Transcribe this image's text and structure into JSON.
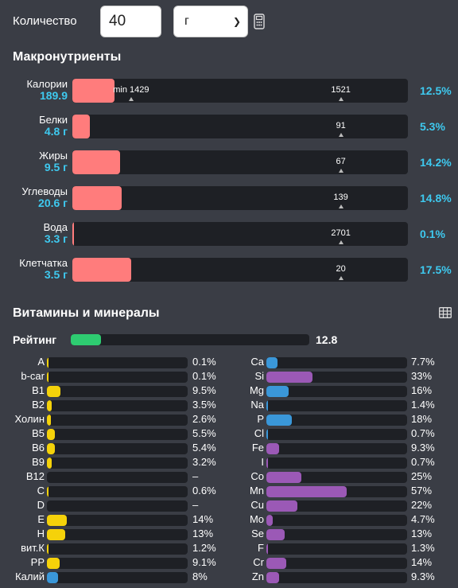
{
  "quantity": {
    "label": "Количество",
    "value": "40",
    "unit": "г"
  },
  "macros": {
    "title": "Макронутриенты",
    "fill_color": "#ff7c7c",
    "items": [
      {
        "name": "Калории",
        "value": "189.9",
        "fraction": 0.125,
        "markers": [
          {
            "label": "min 1429",
            "pos": 0.175
          },
          {
            "label": "1521",
            "pos": 0.8
          }
        ],
        "pct": "12.5%"
      },
      {
        "name": "Белки",
        "value": "4.8 г",
        "fraction": 0.053,
        "markers": [
          {
            "label": "91",
            "pos": 0.8
          }
        ],
        "pct": "5.3%"
      },
      {
        "name": "Жиры",
        "value": "9.5 г",
        "fraction": 0.142,
        "markers": [
          {
            "label": "67",
            "pos": 0.8
          }
        ],
        "pct": "14.2%"
      },
      {
        "name": "Углеводы",
        "value": "20.6 г",
        "fraction": 0.148,
        "markers": [
          {
            "label": "139",
            "pos": 0.8
          }
        ],
        "pct": "14.8%"
      },
      {
        "name": "Вода",
        "value": "3.3 г",
        "fraction": 0.001,
        "markers": [
          {
            "label": "2701",
            "pos": 0.8
          }
        ],
        "pct": "0.1%"
      },
      {
        "name": "Клетчатка",
        "value": "3.5 г",
        "fraction": 0.175,
        "markers": [
          {
            "label": "20",
            "pos": 0.8
          }
        ],
        "pct": "17.5%"
      }
    ]
  },
  "vitamins": {
    "title": "Витамины и минералы",
    "rating_label": "Рейтинг",
    "rating_value": "12.8",
    "rating_fraction": 0.128,
    "rating_color": "#2ecc71",
    "left": [
      {
        "name": "A",
        "pct": "0.1%",
        "fraction": 0.001,
        "color": "#f5d20a"
      },
      {
        "name": "b-car",
        "pct": "0.1%",
        "fraction": 0.001,
        "color": "#f5d20a"
      },
      {
        "name": "B1",
        "pct": "9.5%",
        "fraction": 0.095,
        "color": "#f5d20a"
      },
      {
        "name": "B2",
        "pct": "3.5%",
        "fraction": 0.035,
        "color": "#f5d20a"
      },
      {
        "name": "Холин",
        "pct": "2.6%",
        "fraction": 0.026,
        "color": "#f5d20a"
      },
      {
        "name": "B5",
        "pct": "5.5%",
        "fraction": 0.055,
        "color": "#f5d20a"
      },
      {
        "name": "B6",
        "pct": "5.4%",
        "fraction": 0.054,
        "color": "#f5d20a"
      },
      {
        "name": "B9",
        "pct": "3.2%",
        "fraction": 0.032,
        "color": "#f5d20a"
      },
      {
        "name": "B12",
        "pct": "–",
        "fraction": 0,
        "color": "#f5d20a"
      },
      {
        "name": "C",
        "pct": "0.6%",
        "fraction": 0.006,
        "color": "#f5d20a"
      },
      {
        "name": "D",
        "pct": "–",
        "fraction": 0,
        "color": "#f5d20a"
      },
      {
        "name": "E",
        "pct": "14%",
        "fraction": 0.14,
        "color": "#f5d20a"
      },
      {
        "name": "H",
        "pct": "13%",
        "fraction": 0.13,
        "color": "#f5d20a"
      },
      {
        "name": "вит.К",
        "pct": "1.2%",
        "fraction": 0.012,
        "color": "#f5d20a"
      },
      {
        "name": "PP",
        "pct": "9.1%",
        "fraction": 0.091,
        "color": "#f5d20a"
      },
      {
        "name": "Калий",
        "pct": "8%",
        "fraction": 0.08,
        "color": "#3a97d9"
      }
    ],
    "right": [
      {
        "name": "Ca",
        "pct": "7.7%",
        "fraction": 0.077,
        "color": "#3a97d9"
      },
      {
        "name": "Si",
        "pct": "33%",
        "fraction": 0.33,
        "color": "#9b59b6"
      },
      {
        "name": "Mg",
        "pct": "16%",
        "fraction": 0.16,
        "color": "#3a97d9"
      },
      {
        "name": "Na",
        "pct": "1.4%",
        "fraction": 0.014,
        "color": "#3a97d9"
      },
      {
        "name": "P",
        "pct": "18%",
        "fraction": 0.18,
        "color": "#3a97d9"
      },
      {
        "name": "Cl",
        "pct": "0.7%",
        "fraction": 0.007,
        "color": "#3a97d9"
      },
      {
        "name": "Fe",
        "pct": "9.3%",
        "fraction": 0.093,
        "color": "#9b59b6"
      },
      {
        "name": "I",
        "pct": "0.7%",
        "fraction": 0.007,
        "color": "#9b59b6"
      },
      {
        "name": "Co",
        "pct": "25%",
        "fraction": 0.25,
        "color": "#9b59b6"
      },
      {
        "name": "Mn",
        "pct": "57%",
        "fraction": 0.57,
        "color": "#9b59b6"
      },
      {
        "name": "Cu",
        "pct": "22%",
        "fraction": 0.22,
        "color": "#9b59b6"
      },
      {
        "name": "Mo",
        "pct": "4.7%",
        "fraction": 0.047,
        "color": "#9b59b6"
      },
      {
        "name": "Se",
        "pct": "13%",
        "fraction": 0.13,
        "color": "#9b59b6"
      },
      {
        "name": "F",
        "pct": "1.3%",
        "fraction": 0.013,
        "color": "#9b59b6"
      },
      {
        "name": "Cr",
        "pct": "14%",
        "fraction": 0.14,
        "color": "#9b59b6"
      },
      {
        "name": "Zn",
        "pct": "9.3%",
        "fraction": 0.093,
        "color": "#9b59b6"
      }
    ]
  }
}
